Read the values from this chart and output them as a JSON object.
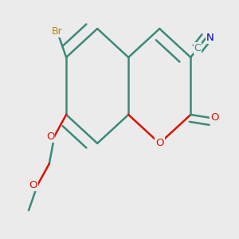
{
  "bg_color": "#ebebeb",
  "bond_color": "#3a8a7a",
  "bond_width": 1.8,
  "atom_colors": {
    "Br": "#b8860b",
    "O": "#dd1100",
    "N": "#0000cc",
    "C": "#3a8a7a"
  },
  "figsize": [
    3.0,
    3.0
  ],
  "dpi": 100
}
